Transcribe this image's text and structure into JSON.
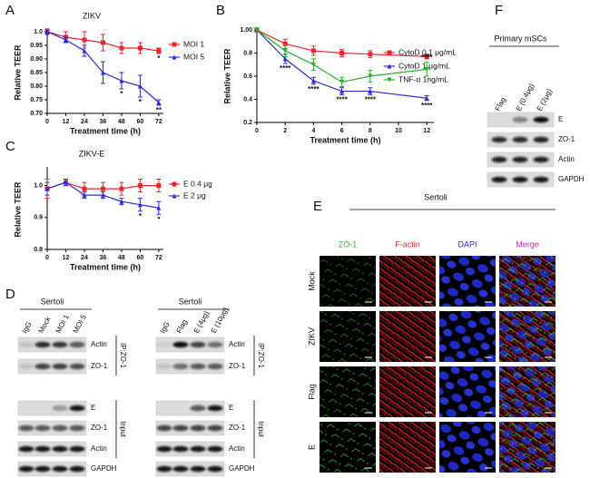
{
  "chart_data": [
    {
      "type": "line",
      "title": "ZIKV",
      "xlabel": "Treatment time (h)",
      "ylabel": "Relative TEER",
      "x": [
        0,
        12,
        24,
        36,
        48,
        60,
        72
      ],
      "xlim": [
        0,
        75
      ],
      "xticks": [
        0,
        12,
        24,
        36,
        48,
        60,
        72
      ],
      "ylim": [
        0.7,
        1.0
      ],
      "yticks": [
        {
          "value": 0.7,
          "label": "0.70"
        },
        0.75,
        {
          "value": 0.8,
          "label": "0.80"
        },
        0.85,
        {
          "value": 0.9,
          "label": "0.90"
        },
        0.95,
        {
          "value": 1.0,
          "label": "1.0"
        }
      ],
      "series": [
        {
          "name": "MOI 1",
          "color": "#e8262b",
          "marker": "square",
          "values": [
            1.0,
            0.98,
            0.97,
            0.96,
            0.94,
            0.94,
            0.93
          ],
          "errors": [
            0.01,
            0.02,
            0.03,
            0.03,
            0.02,
            0.02,
            0.01
          ]
        },
        {
          "name": "MOI 5",
          "color": "#2b2bd6",
          "marker": "triangle-up",
          "values": [
            1.0,
            0.97,
            0.93,
            0.85,
            0.82,
            0.8,
            0.74
          ],
          "errors": [
            0.01,
            0.01,
            0.02,
            0.04,
            0.03,
            0.04,
            0.01
          ]
        }
      ],
      "annotations": [
        {
          "text": "*",
          "series": 0,
          "x": 72,
          "placement": "below"
        },
        {
          "text": "*",
          "series": 1,
          "x": 48,
          "placement": "below"
        },
        {
          "text": "*",
          "series": 1,
          "x": 60,
          "placement": "below"
        },
        {
          "text": "**",
          "series": 1,
          "x": 72,
          "placement": "below"
        }
      ]
    },
    {
      "type": "line",
      "xlabel": "Treatment time (h)",
      "ylabel": "Relative TEER",
      "x": [
        0,
        2,
        4,
        6,
        8,
        12
      ],
      "xlim": [
        0,
        12.5
      ],
      "xticks": [
        0,
        2,
        4,
        6,
        8,
        10,
        12
      ],
      "ylim": [
        0.2,
        1.0
      ],
      "yticks": [
        0.2,
        0.4,
        0.6,
        0.8,
        {
          "value": 1.0,
          "label": "1.00"
        }
      ],
      "series": [
        {
          "name": "CytoD 0.1 μg/mL",
          "color": "#e8262b",
          "marker": "square",
          "values": [
            1.0,
            0.88,
            0.82,
            0.8,
            0.79,
            0.77
          ],
          "errors": [
            0.02,
            0.04,
            0.04,
            0.03,
            0.03,
            0.02
          ]
        },
        {
          "name": "CytoD  1 μg/mL",
          "color": "#2b2bd6",
          "marker": "triangle-up",
          "values": [
            1.0,
            0.75,
            0.56,
            0.47,
            0.47,
            0.41
          ],
          "errors": [
            0.02,
            0.04,
            0.03,
            0.03,
            0.03,
            0.02
          ]
        },
        {
          "name": "TNF-α  1ng/mL",
          "color": "#22b322",
          "marker": "triangle-down",
          "values": [
            1.0,
            0.82,
            0.7,
            0.55,
            0.6,
            0.66
          ],
          "errors": [
            0.02,
            0.05,
            0.05,
            0.04,
            0.05,
            0.06
          ]
        }
      ],
      "annotations": [
        {
          "text": "****",
          "series": 1,
          "x": 2,
          "placement": "below"
        },
        {
          "text": "****",
          "series": 1,
          "x": 4,
          "placement": "below"
        },
        {
          "text": "****",
          "series": 1,
          "x": 6,
          "placement": "below"
        },
        {
          "text": "****",
          "series": 1,
          "x": 8,
          "placement": "below"
        },
        {
          "text": "****",
          "series": 2,
          "x": 12,
          "placement": "above"
        },
        {
          "text": "****",
          "series": 1,
          "x": 12,
          "placement": "below"
        }
      ]
    },
    {
      "type": "line",
      "title": "ZIKV-E",
      "xlabel": "Treatment time (h)",
      "ylabel": "Relative TEER",
      "x": [
        0,
        12,
        24,
        36,
        48,
        60,
        72
      ],
      "xlim": [
        0,
        75
      ],
      "xticks": [
        0,
        12,
        24,
        36,
        48,
        60,
        72
      ],
      "ylim": [
        0.8,
        1.05
      ],
      "yticks": [
        0.8,
        0.9,
        {
          "value": 1.0,
          "label": "1.0"
        }
      ],
      "series": [
        {
          "name": "E 0.4 μg",
          "color": "#e8262b",
          "marker": "square",
          "values": [
            0.99,
            1.01,
            0.99,
            0.99,
            0.99,
            1.0,
            1.0
          ],
          "errors": [
            0.03,
            0.01,
            0.02,
            0.02,
            0.02,
            0.02,
            0.02
          ]
        },
        {
          "name": "E  2 μg",
          "color": "#2b2bd6",
          "marker": "triangle-up",
          "values": [
            0.99,
            1.01,
            0.97,
            0.97,
            0.95,
            0.94,
            0.93
          ],
          "errors": [
            0.02,
            0.01,
            0.01,
            0.01,
            0.01,
            0.02,
            0.02
          ]
        }
      ],
      "annotations": [
        {
          "text": "*",
          "series": 1,
          "x": 60,
          "placement": "below"
        },
        {
          "text": "*",
          "series": 1,
          "x": 72,
          "placement": "below"
        }
      ]
    }
  ],
  "panel_labels": [
    "A",
    "B",
    "C",
    "D",
    "E",
    "F"
  ],
  "panel_d": {
    "left": {
      "title": "Sertoli",
      "lanes": [
        "IgG",
        "Mock",
        "MOI 1",
        "MOI 5"
      ],
      "rows": [
        "Actin",
        "ZO-1",
        "E",
        "ZO-1",
        "Actin",
        "GAPDH"
      ],
      "groups": [
        "IP:ZO-1",
        "Input"
      ]
    },
    "right": {
      "title": "Sertoli",
      "lanes": [
        "IgG",
        "Flag",
        "E (4μg)",
        "E (10μg)"
      ],
      "rows": [
        "Actin",
        "ZO-1",
        "E",
        "ZO-1",
        "Actin",
        "GAPDH"
      ],
      "groups": [
        "IP:ZO-1",
        "Input"
      ]
    }
  },
  "panel_e": {
    "title": "Sertoli",
    "channels": [
      {
        "name": "ZO-1",
        "color": "#2fbf2f"
      },
      {
        "name": "F-actin",
        "color": "#e8262b"
      },
      {
        "name": "DAPI",
        "color": "#2b2bd6"
      },
      {
        "name": "Merge",
        "color": "#d41cd4"
      }
    ],
    "conditions": [
      "Mock",
      "ZIKV",
      "Flag",
      "E"
    ]
  },
  "panel_f": {
    "title": "Primary mSCs",
    "lanes": [
      "Flag",
      "E (0.4μg)",
      "E (2μg)"
    ],
    "rows": [
      "E",
      "ZO-1",
      "Actin",
      "GAPDH"
    ]
  }
}
